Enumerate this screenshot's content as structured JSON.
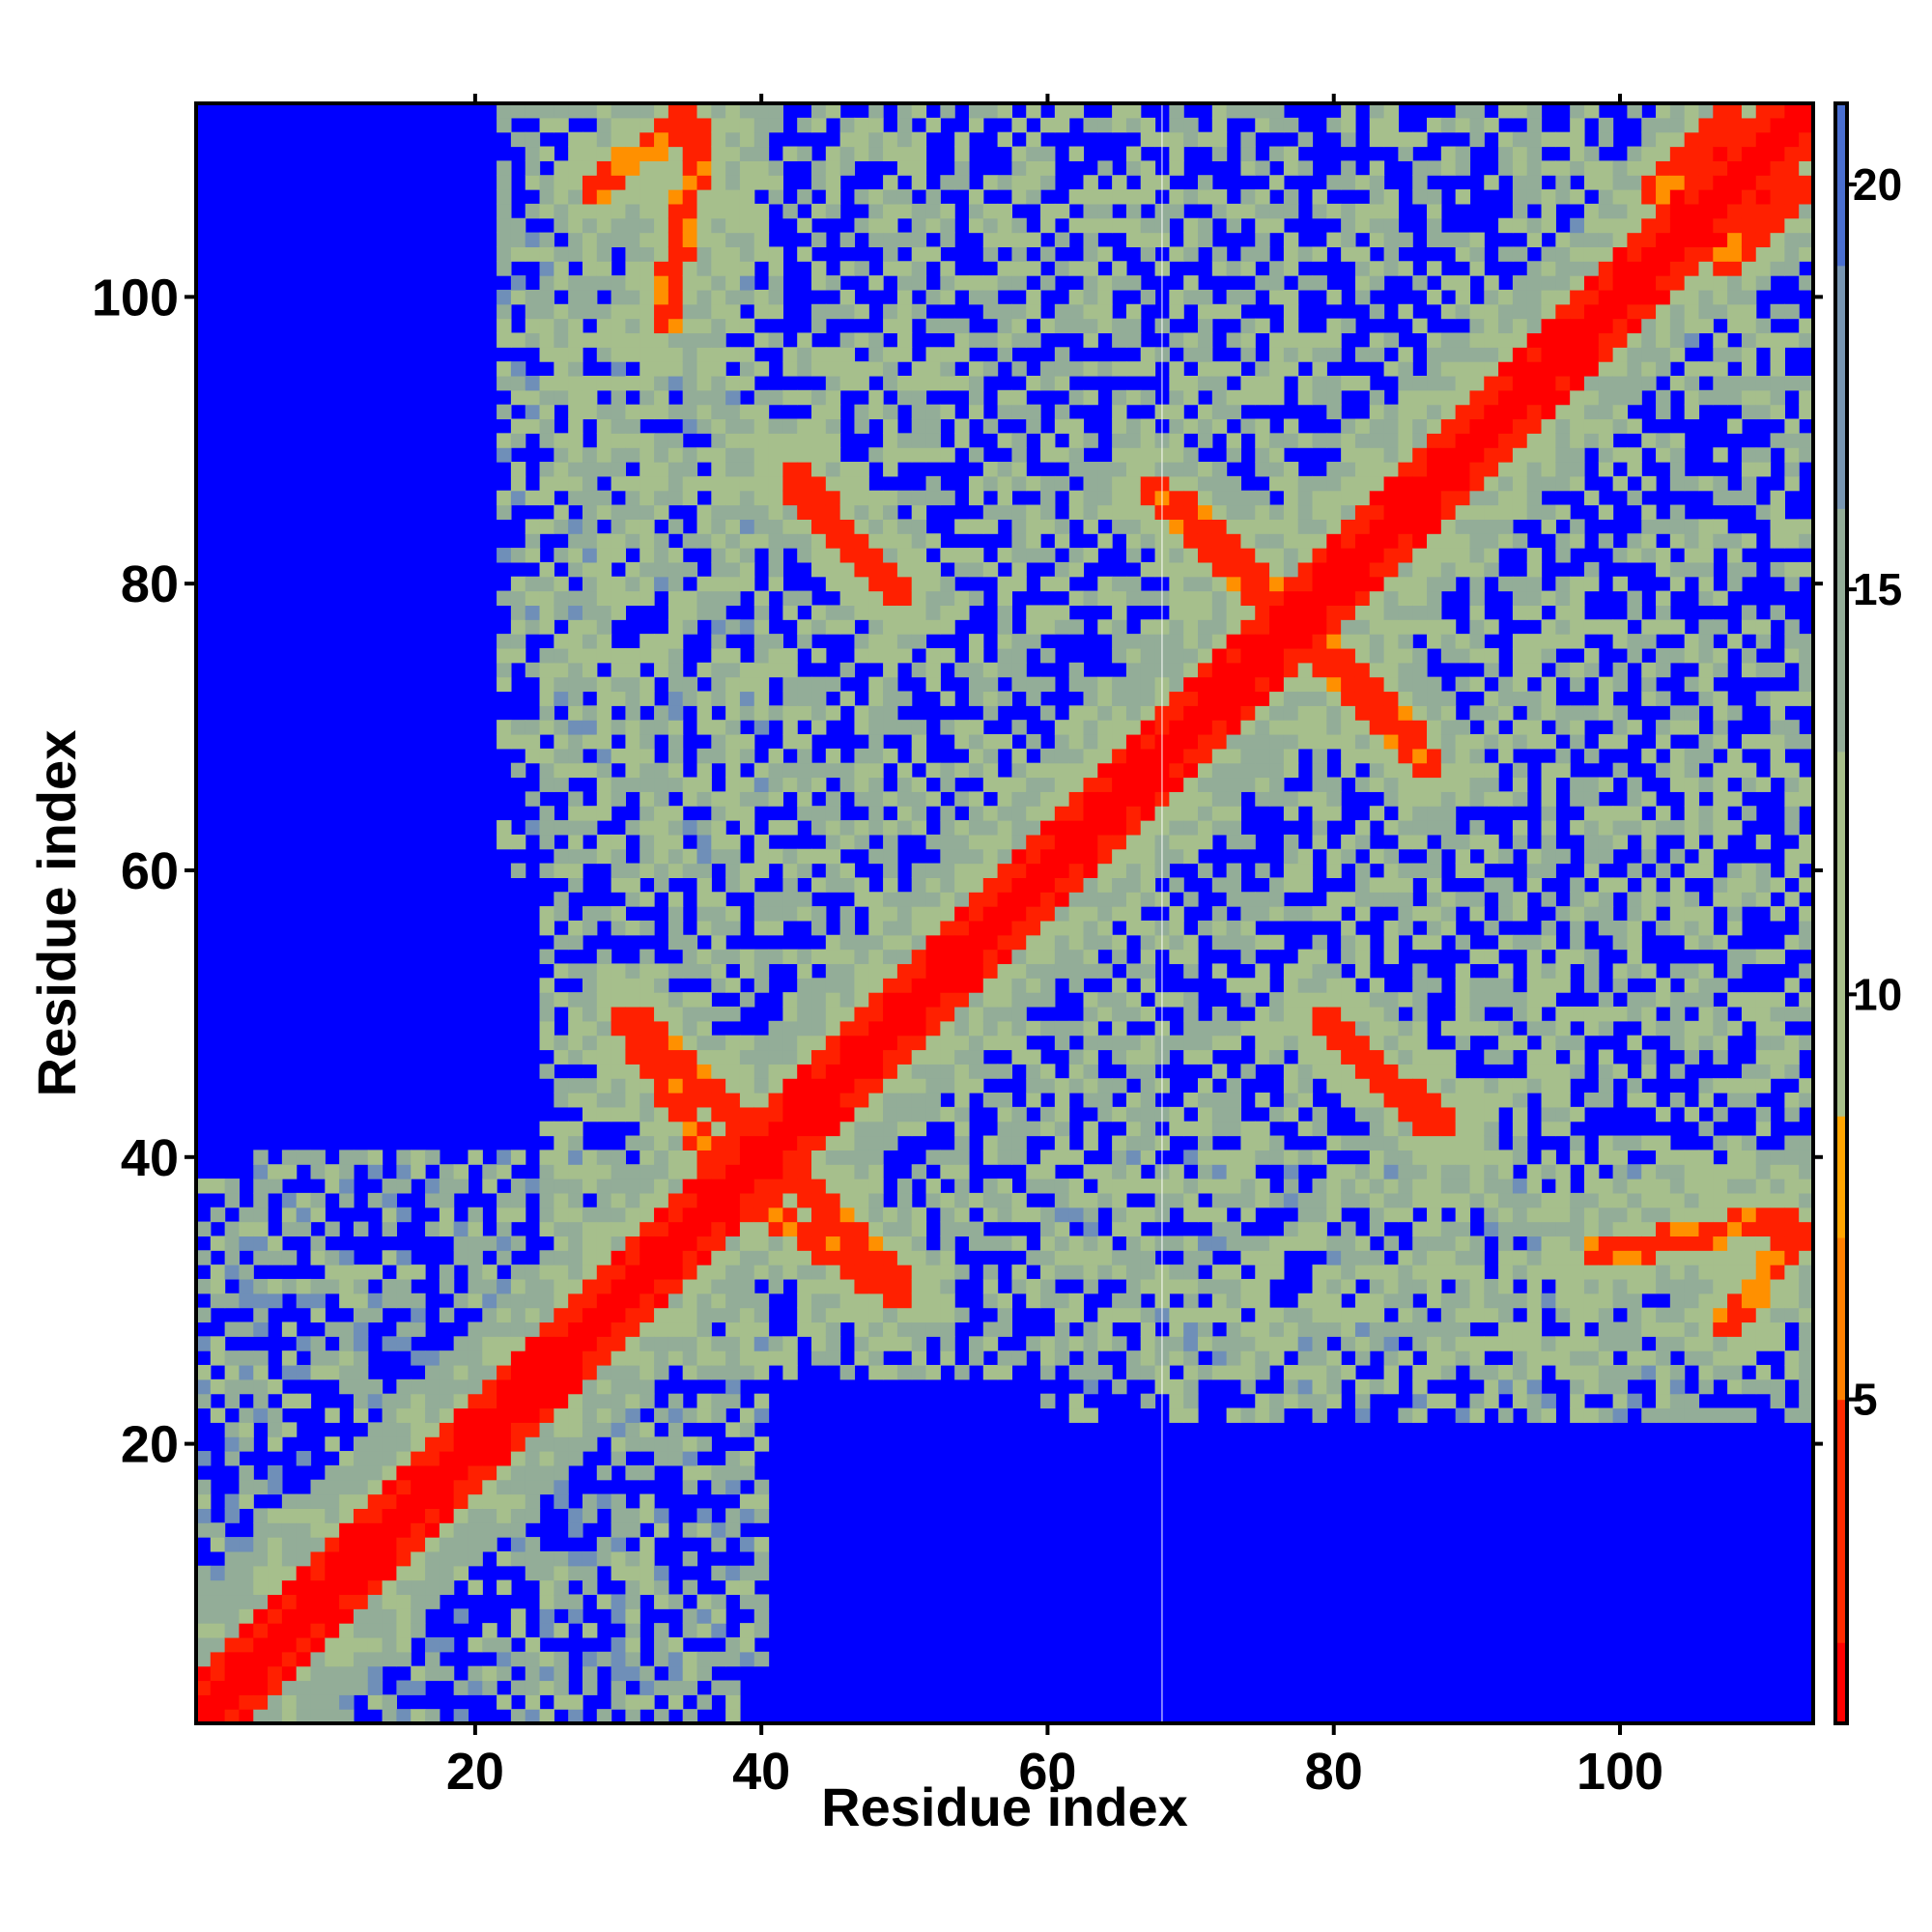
{
  "chart_data": {
    "type": "heatmap",
    "title": "",
    "xlabel": "Residue index",
    "ylabel": "Residue index",
    "n_residues": 113,
    "xlim": [
      1,
      113
    ],
    "ylim": [
      1,
      113
    ],
    "x_ticks": [
      20,
      40,
      60,
      80,
      100
    ],
    "y_ticks": [
      20,
      40,
      60,
      80,
      100
    ],
    "colorbar": {
      "ticks": [
        5,
        10,
        15,
        20
      ],
      "range": [
        1,
        21
      ],
      "colormap": [
        "#ff0000",
        "#ff8c00",
        "#ffa500",
        "#a8c08a",
        "#93ad98",
        "#6f8fb8",
        "#0000ff"
      ]
    },
    "values_description_unit": "distance",
    "structure": {
      "diagonal_value": 2,
      "near_diagonal_width": 3,
      "background_value": 21,
      "contact_strands": [
        {
          "i_start": 31,
          "j_start": 50,
          "i_end": 42,
          "j_end": 39,
          "value": 6
        },
        {
          "i_start": 38,
          "j_start": 38,
          "i_end": 50,
          "j_end": 30,
          "value": 6
        },
        {
          "i_start": 42,
          "j_start": 87,
          "i_end": 50,
          "j_end": 79,
          "value": 6
        },
        {
          "i_start": 69,
          "j_start": 86,
          "i_end": 78,
          "j_end": 77,
          "value": 6
        },
        {
          "i_start": 78,
          "j_start": 76,
          "i_end": 87,
          "j_end": 67,
          "value": 6
        },
        {
          "i_start": 80,
          "j_start": 49,
          "i_end": 88,
          "j_end": 42,
          "value": 6
        },
        {
          "i_start": 98,
          "j_start": 33,
          "i_end": 112,
          "j_end": 36,
          "value": 6
        },
        {
          "i_start": 28,
          "j_start": 107,
          "i_end": 35,
          "j_end": 113,
          "value": 6
        },
        {
          "i_start": 102,
          "j_start": 107,
          "i_end": 108,
          "j_end": 113,
          "value": 6
        }
      ],
      "domain_blocks": [
        {
          "x_range": [
            25,
            113
          ],
          "y_range": [
            30,
            113
          ],
          "value": 14
        },
        {
          "x_range": [
            60,
            113
          ],
          "y_range": [
            22,
            40
          ],
          "value": 15
        },
        {
          "x_range": [
            1,
            40
          ],
          "y_range": [
            1,
            40
          ],
          "value": 16
        }
      ]
    }
  }
}
